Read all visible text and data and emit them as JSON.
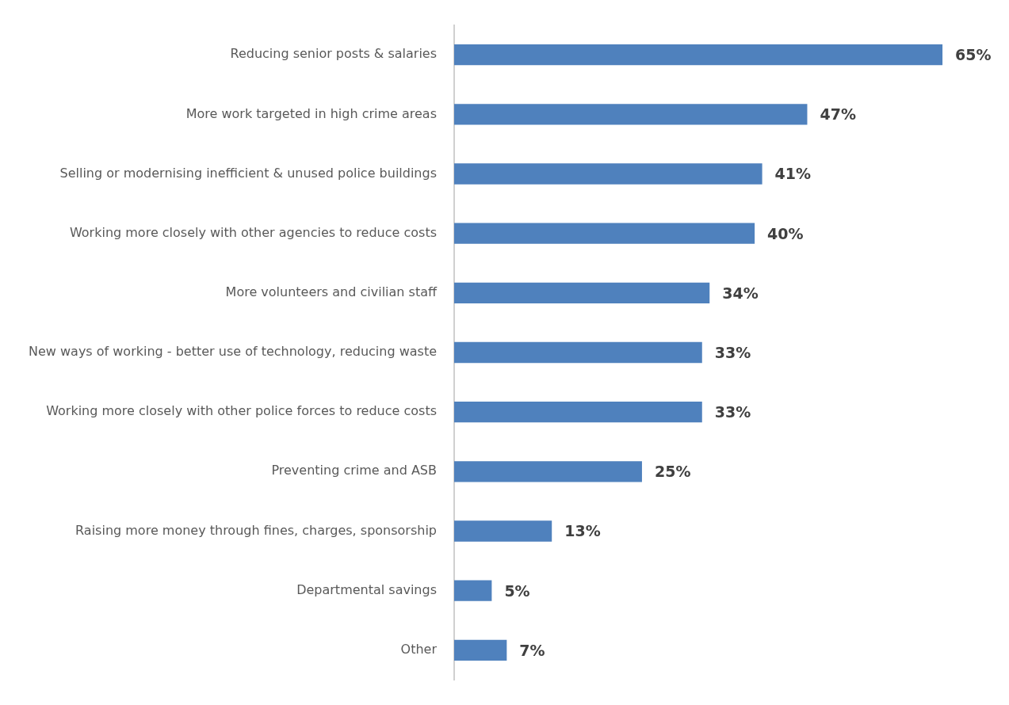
{
  "chart_data": {
    "type": "bar",
    "orientation": "horizontal",
    "categories": [
      "Reducing senior posts & salaries",
      "More work targeted in high crime areas",
      "Selling or modernising inefficient & unused police buildings",
      "Working more closely with other agencies to reduce costs",
      "More volunteers and civilian staff",
      "New ways of working - better use of technology, reducing waste",
      "Working more closely with other police forces to reduce costs",
      "Preventing crime and ASB",
      "Raising more money through fines, charges, sponsorship",
      "Departmental savings",
      "Other"
    ],
    "values": [
      65,
      47,
      41,
      40,
      34,
      33,
      33,
      25,
      13,
      5,
      7
    ],
    "value_labels": [
      "65%",
      "47%",
      "41%",
      "40%",
      "34%",
      "33%",
      "33%",
      "25%",
      "13%",
      "5%",
      "7%"
    ],
    "color": "#4f81bd",
    "grid": false,
    "legend": false
  }
}
